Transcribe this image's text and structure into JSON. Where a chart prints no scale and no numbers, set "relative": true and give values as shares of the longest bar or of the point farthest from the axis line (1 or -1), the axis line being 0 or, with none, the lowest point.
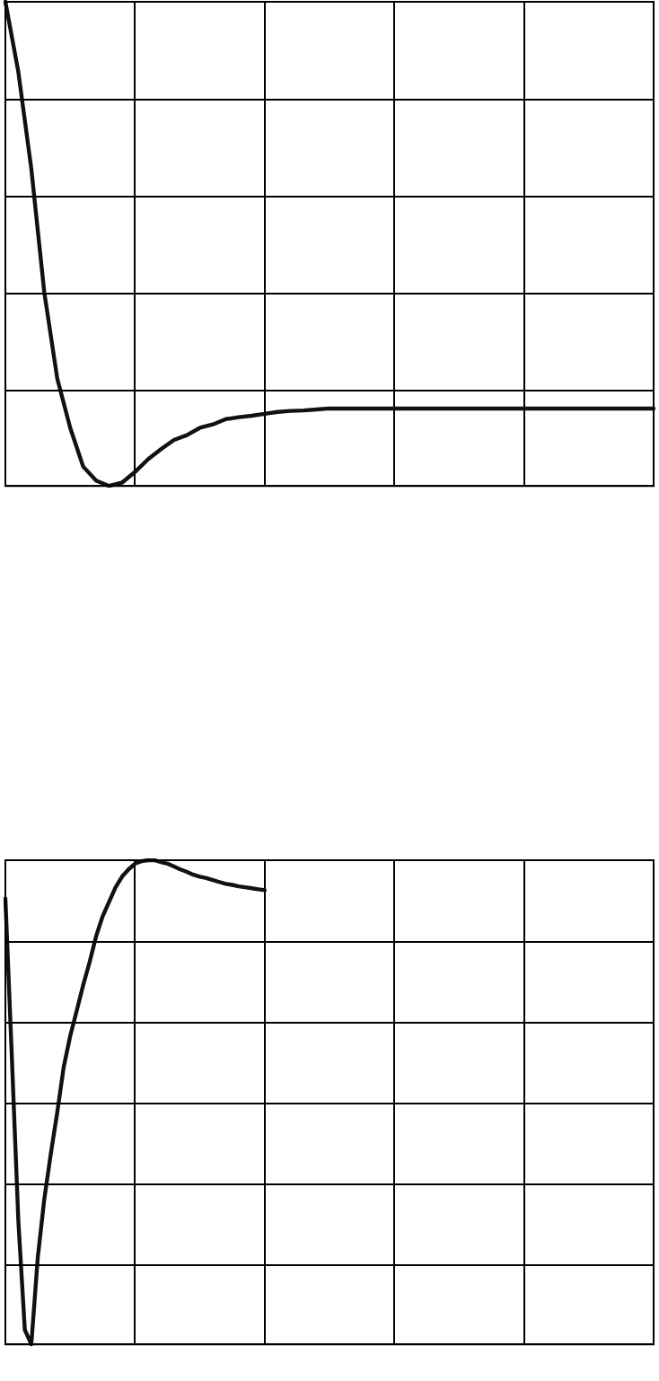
{
  "chart_data": [
    {
      "type": "line",
      "relative": true,
      "grid": true,
      "legend": false,
      "marker": "none",
      "line_style": "solid",
      "categories": [
        null,
        null,
        null,
        null,
        null,
        null,
        null,
        null,
        null,
        null,
        null,
        null,
        null,
        null,
        null,
        null,
        null,
        null,
        null,
        null,
        null,
        null,
        null,
        null,
        null,
        null,
        null,
        null,
        null,
        null,
        null,
        null,
        null,
        null,
        null,
        null,
        null,
        null,
        null,
        null,
        null,
        null,
        null,
        null,
        null,
        null,
        null,
        null,
        null,
        null,
        null
      ],
      "series": [
        {
          "color": "#111111",
          "values": [
            1.0,
            0.855,
            0.655,
            0.4,
            0.222,
            0.12,
            0.04,
            0.011,
            0,
            0.007,
            0.029,
            0.055,
            0.076,
            0.095,
            0.105,
            0.12,
            0.127,
            0.138,
            0.142,
            0.145,
            0.149,
            0.153,
            0.155,
            0.156,
            0.158,
            0.16,
            0.16,
            0.16,
            0.16,
            0.16,
            0.16,
            0.16,
            0.16,
            0.16,
            0.16,
            0.16,
            0.16,
            0.16,
            0.16,
            0.16,
            0.16,
            0.16,
            0.16,
            0.16,
            0.16,
            0.16,
            0.16,
            0.16,
            0.16,
            0.16,
            0.16
          ]
        }
      ]
    },
    {
      "type": "line",
      "relative": true,
      "grid": true,
      "legend": false,
      "marker": "none",
      "line_style": "solid",
      "categories": [
        null,
        null,
        null,
        null,
        null,
        null,
        null,
        null,
        null,
        null,
        null,
        null,
        null,
        null,
        null,
        null,
        null,
        null,
        null,
        null,
        null,
        null,
        null,
        null,
        null,
        null,
        null,
        null,
        null,
        null,
        null,
        null,
        null,
        null,
        null,
        null,
        null,
        null,
        null,
        null,
        null,
        null,
        null,
        null,
        null,
        null,
        null,
        null,
        null,
        null,
        null,
        null,
        null,
        null,
        null,
        null,
        null,
        null,
        null,
        null,
        null,
        null,
        null,
        null,
        null,
        null,
        null,
        null,
        null,
        null,
        null,
        null,
        null,
        null,
        null,
        null,
        null,
        null,
        null,
        null,
        null,
        null,
        null,
        null,
        null,
        null,
        null,
        null,
        null,
        null,
        null,
        null,
        null,
        null,
        null,
        null,
        null,
        null,
        null,
        null,
        null
      ],
      "series": [
        {
          "color": "#111111",
          "values": [
            0.921,
            0.592,
            0.255,
            0.03,
            0,
            0.18,
            0.3,
            0.393,
            0.479,
            0.573,
            0.637,
            0.689,
            0.742,
            0.79,
            0.843,
            0.884,
            0.914,
            0.944,
            0.966,
            0.981,
            0.993,
            0.998,
            1.0,
            1.0,
            0.996,
            0.993,
            0.987,
            0.981,
            0.976,
            0.97,
            0.966,
            0.963,
            0.959,
            0.955,
            0.951,
            0.949,
            0.946,
            0.944,
            0.942,
            0.94,
            0.938,
            null,
            null,
            null,
            null,
            null,
            null,
            null,
            null,
            null,
            null,
            null,
            null,
            null,
            null,
            null,
            null,
            null,
            null,
            null,
            null,
            null,
            null,
            null,
            null,
            null,
            null,
            null,
            null,
            null,
            null,
            null,
            null,
            null,
            null,
            null,
            null,
            null,
            null,
            null,
            null,
            null,
            null,
            null,
            null,
            null,
            null,
            null,
            null,
            null,
            null,
            null,
            null,
            null,
            null,
            null,
            null,
            null,
            null,
            null,
            null
          ]
        }
      ]
    }
  ]
}
